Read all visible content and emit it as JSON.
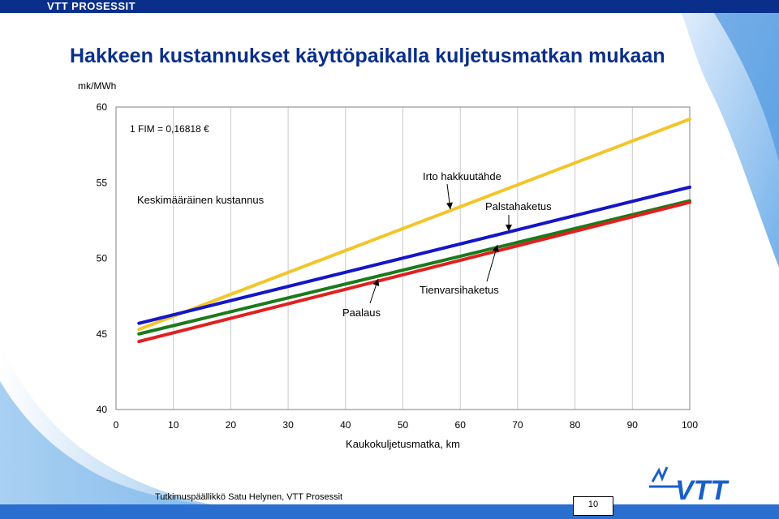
{
  "header": {
    "brand": "VTT PROSESSIT"
  },
  "slide": {
    "title": "Hakkeen kustannukset käyttöpaikalla kuljetusmatkan mukaan",
    "footer": "Tutkimuspäällikkö Satu Helynen, VTT Prosessit",
    "page_number": "10"
  },
  "logo": {
    "text": "VTT"
  },
  "colors": {
    "brand_blue": "#0a2f8a"
  },
  "chart_data": {
    "type": "line",
    "title": "",
    "xlabel": "Kaukokuljetusmatka, km",
    "ylabel": "mk/MWh",
    "xlim": [
      0,
      100
    ],
    "ylim": [
      40,
      60
    ],
    "xticks": [
      0,
      10,
      20,
      30,
      40,
      50,
      60,
      70,
      80,
      90,
      100
    ],
    "yticks": [
      40,
      45,
      50,
      55,
      60
    ],
    "grid": "vertical",
    "note": "1 FIM = 0,16818 €",
    "series": [
      {
        "name": "Irto hakkuutähde",
        "color": "#f2c52a",
        "x": [
          4,
          100
        ],
        "y": [
          45.3,
          59.2
        ]
      },
      {
        "name": "Keskimääräinen kustannus",
        "color": "#1515c8",
        "x": [
          4,
          100
        ],
        "y": [
          45.7,
          54.7
        ]
      },
      {
        "name": "Tienvarsihaketus",
        "color": "#1a7a1a",
        "x": [
          4,
          100
        ],
        "y": [
          45.0,
          53.8
        ]
      },
      {
        "name": "Paalaus",
        "color": "#e02020",
        "x": [
          4,
          100
        ],
        "y": [
          44.5,
          53.7
        ]
      }
    ],
    "annotations": [
      {
        "text": "Irto hakkuutähde"
      },
      {
        "text": "Keskimääräinen kustannus"
      },
      {
        "text": "Palstahaketus"
      },
      {
        "text": "Tienvarsihaketus"
      },
      {
        "text": "Paalaus"
      }
    ]
  }
}
